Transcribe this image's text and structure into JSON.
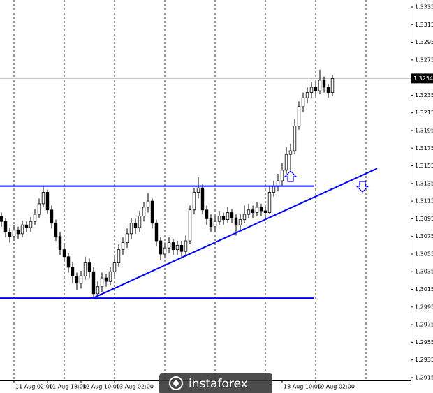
{
  "chart_data": {
    "type": "candlestick",
    "x": [
      0,
      1,
      2,
      3,
      4,
      5,
      6,
      7,
      8,
      9,
      10,
      11,
      12,
      13,
      14,
      15,
      16,
      17,
      18,
      19,
      20,
      21,
      22,
      23,
      24,
      25,
      26,
      27,
      28,
      29,
      30,
      31,
      32,
      33,
      34,
      35,
      36,
      37,
      38,
      39,
      40,
      41,
      42,
      43,
      44,
      45,
      46,
      47,
      48,
      49,
      50,
      51,
      52,
      53,
      54,
      55,
      56,
      57,
      58,
      59,
      60,
      61,
      62,
      63,
      64,
      65,
      66,
      67,
      68,
      69,
      70,
      71,
      72,
      73,
      74,
      75,
      76,
      77,
      78,
      79
    ],
    "open": [
      1.3098,
      1.3092,
      1.308,
      1.3075,
      1.3082,
      1.3078,
      1.3088,
      1.3085,
      1.3092,
      1.31,
      1.3112,
      1.3125,
      1.3105,
      1.309,
      1.3075,
      1.306,
      1.3052,
      1.304,
      1.303,
      1.3022,
      1.303,
      1.3045,
      1.3035,
      1.301,
      1.3018,
      1.3028,
      1.3024,
      1.3035,
      1.3045,
      1.306,
      1.3068,
      1.3078,
      1.309,
      1.3085,
      1.3098,
      1.3108,
      1.3115,
      1.309,
      1.307,
      1.3055,
      1.3062,
      1.3068,
      1.306,
      1.3065,
      1.3058,
      1.307,
      1.3105,
      1.3125,
      1.313,
      1.3105,
      1.3095,
      1.3086,
      1.3092,
      1.3098,
      1.3094,
      1.3102,
      1.3096,
      1.3088,
      1.3094,
      1.31,
      1.3105,
      1.3102,
      1.3108,
      1.3104,
      1.3102,
      1.3125,
      1.3132,
      1.3138,
      1.315,
      1.3168,
      1.3172,
      1.32,
      1.3222,
      1.3232,
      1.3238,
      1.3244,
      1.324,
      1.3252,
      1.3244,
      1.3238
    ],
    "high": [
      1.3102,
      1.3096,
      1.3085,
      1.3088,
      1.3086,
      1.3093,
      1.3092,
      1.3097,
      1.3106,
      1.3118,
      1.3132,
      1.3128,
      1.311,
      1.3094,
      1.308,
      1.3066,
      1.3056,
      1.3046,
      1.3034,
      1.3036,
      1.3052,
      1.305,
      1.304,
      1.3024,
      1.3034,
      1.3032,
      1.304,
      1.305,
      1.3066,
      1.3074,
      1.3084,
      1.3096,
      1.3095,
      1.3104,
      1.3114,
      1.3124,
      1.3118,
      1.3094,
      1.3074,
      1.3068,
      1.3074,
      1.3072,
      1.307,
      1.307,
      1.3076,
      1.311,
      1.313,
      1.3142,
      1.3134,
      1.311,
      1.31,
      1.3098,
      1.3104,
      1.3102,
      1.3108,
      1.3106,
      1.31,
      1.31,
      1.311,
      1.3112,
      1.311,
      1.3114,
      1.3112,
      1.3108,
      1.3132,
      1.3138,
      1.3146,
      1.3158,
      1.3176,
      1.318,
      1.3208,
      1.3228,
      1.3238,
      1.3244,
      1.325,
      1.325,
      1.3264,
      1.3256,
      1.3248,
      1.3258
    ],
    "low": [
      1.3086,
      1.3074,
      1.3068,
      1.307,
      1.3072,
      1.3074,
      1.308,
      1.308,
      1.3088,
      1.3096,
      1.3108,
      1.31,
      1.3084,
      1.307,
      1.3054,
      1.3046,
      1.3034,
      1.3022,
      1.3014,
      1.3016,
      1.3026,
      1.3028,
      1.3005,
      1.3006,
      1.3012,
      1.3018,
      1.302,
      1.303,
      1.304,
      1.3054,
      1.3062,
      1.3072,
      1.3078,
      1.308,
      1.3092,
      1.3102,
      1.3084,
      1.3064,
      1.3048,
      1.305,
      1.3056,
      1.3054,
      1.3054,
      1.3052,
      1.3054,
      1.3066,
      1.31,
      1.3118,
      1.31,
      1.3088,
      1.308,
      1.308,
      1.3088,
      1.3088,
      1.309,
      1.309,
      1.3076,
      1.3082,
      1.309,
      1.3096,
      1.3096,
      1.3098,
      1.3098,
      1.3096,
      1.31,
      1.312,
      1.3126,
      1.3132,
      1.3146,
      1.315,
      1.3168,
      1.3196,
      1.3216,
      1.3226,
      1.3232,
      1.3234,
      1.3236,
      1.3238,
      1.3232,
      1.3234
    ],
    "close": [
      1.3092,
      1.308,
      1.3075,
      1.3082,
      1.3078,
      1.3088,
      1.3085,
      1.3092,
      1.31,
      1.3112,
      1.3125,
      1.3105,
      1.309,
      1.3075,
      1.306,
      1.3052,
      1.304,
      1.303,
      1.3022,
      1.303,
      1.3045,
      1.3035,
      1.301,
      1.3018,
      1.3028,
      1.3024,
      1.3035,
      1.3045,
      1.306,
      1.3068,
      1.3078,
      1.309,
      1.3085,
      1.3098,
      1.3108,
      1.3115,
      1.309,
      1.307,
      1.3055,
      1.3062,
      1.3068,
      1.306,
      1.3065,
      1.3058,
      1.307,
      1.3105,
      1.3125,
      1.313,
      1.3105,
      1.3095,
      1.3086,
      1.3092,
      1.3098,
      1.3094,
      1.3102,
      1.3096,
      1.3088,
      1.3094,
      1.31,
      1.3105,
      1.3102,
      1.3108,
      1.3104,
      1.3102,
      1.3125,
      1.3132,
      1.3138,
      1.315,
      1.3168,
      1.3172,
      1.32,
      1.3222,
      1.3232,
      1.3238,
      1.3244,
      1.324,
      1.3252,
      1.3244,
      1.3238,
      1.3254
    ],
    "bull_color": "#ffffff",
    "bear_color": "#000000",
    "wick_color": "#000000",
    "xlim": [
      -0.333,
      97.667
    ],
    "ylim": [
      1.29118,
      1.33429
    ],
    "xticks": [
      {
        "value": 3,
        "label": "11 Aug 02:00"
      },
      {
        "value": 11,
        "label": "11 Aug 18:00"
      },
      {
        "value": 19,
        "label": "12 Aug 10:00"
      },
      {
        "value": 27,
        "label": "13 Aug 02:00"
      },
      {
        "value": 67,
        "label": "18 Aug 10:00"
      },
      {
        "value": 75,
        "label": "19 Aug 02:00"
      }
    ],
    "xgrid": [
      3,
      15,
      27,
      39,
      51,
      63,
      75,
      87
    ],
    "yticks": [
      1.3335,
      1.3315,
      1.3295,
      1.3275,
      1.3235,
      1.3215,
      1.3195,
      1.3175,
      1.3155,
      1.3135,
      1.3115,
      1.3095,
      1.3075,
      1.3055,
      1.3035,
      1.3015,
      1.2995,
      1.2975,
      1.2955,
      1.2935,
      1.2915
    ],
    "price_label": 1.3254,
    "line_color": "#0000ff",
    "lines": [
      {
        "x": [
          -0.333,
          74.667
        ],
        "y": [
          1.3132,
          1.3132
        ]
      },
      {
        "x": [
          -0.333,
          74.667
        ],
        "y": [
          1.3005,
          1.3005
        ]
      },
      {
        "x": [
          21.8,
          89.667
        ],
        "y": [
          1.3005,
          1.3152
        ]
      }
    ],
    "watermark": "instaforex"
  }
}
